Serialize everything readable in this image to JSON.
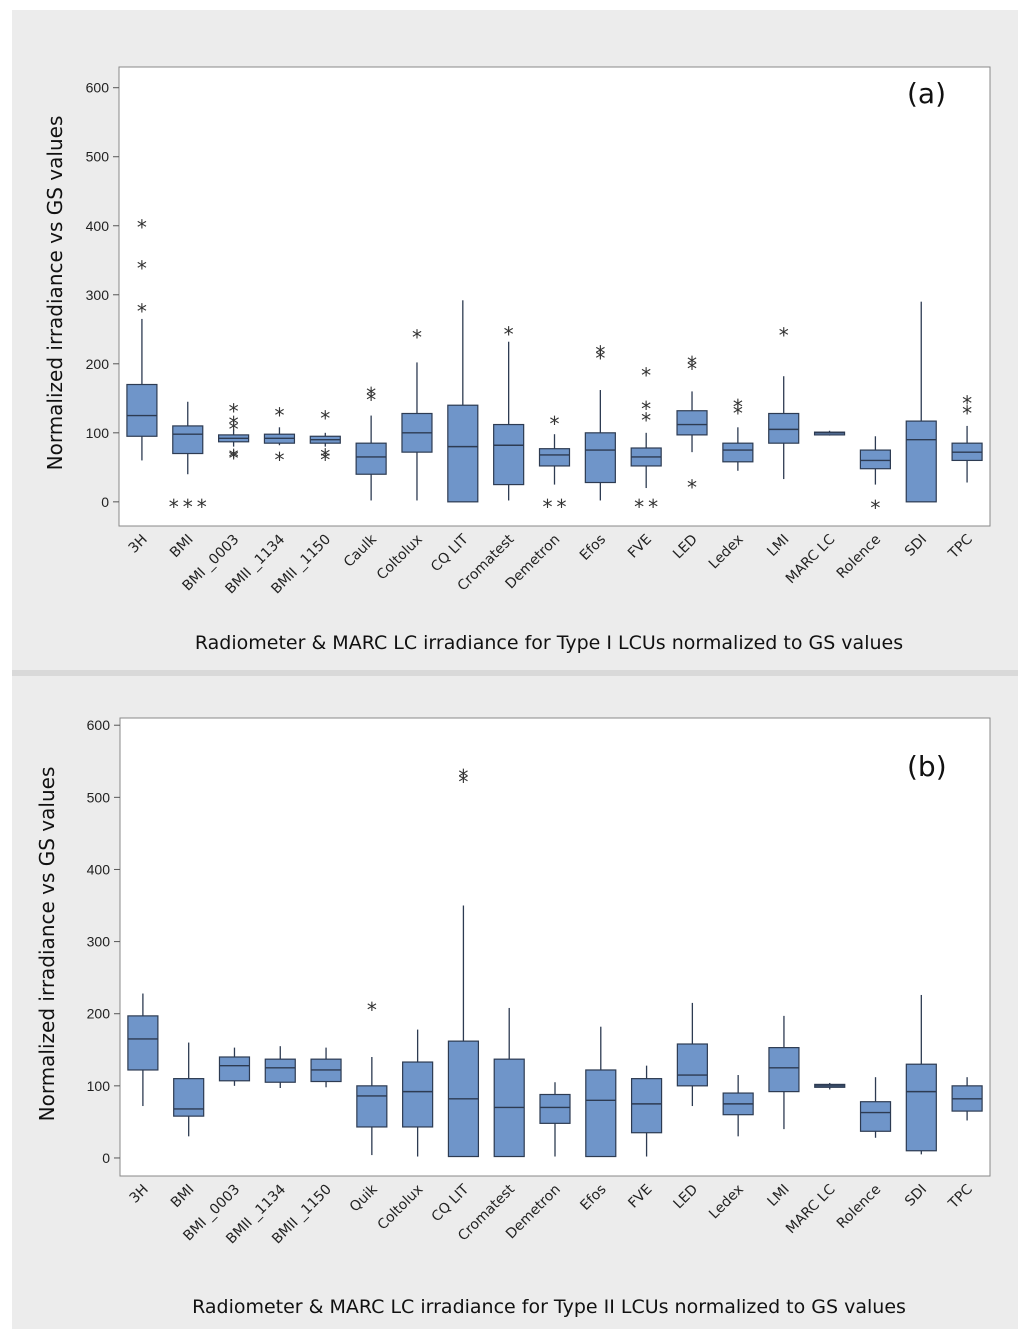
{
  "colors": {
    "box_fill": "#6f95c9",
    "box_stroke": "#2d3b52",
    "panel_bg": "#ececec",
    "plot_bg": "#ffffff"
  },
  "chart_data": [
    {
      "type": "boxplot",
      "panel_label": "(a)",
      "xlabel": "Radiometer & MARC LC irradiance for Type I LCUs normalized to GS values",
      "ylabel": "Normalized irradiance vs GS values",
      "ylim": [
        -35,
        630
      ],
      "yticks": [
        0,
        100,
        200,
        300,
        400,
        500,
        600
      ],
      "grid": false,
      "categories": [
        "3H",
        "BMI",
        "BMI_0003",
        "BMII_1134",
        "BMII_1150",
        "Caulk",
        "Coltolux",
        "CQ LIT",
        "Cromatest",
        "Demetron",
        "Efos",
        "FVE",
        "LED",
        "Ledex",
        "LMI",
        "MARC LC",
        "Rolence",
        "SDI",
        "TPC"
      ],
      "tick_labels": [
        "3H",
        "BMI",
        "BMI _0003",
        "BMII _1134",
        "BMII _1150",
        "Caulk",
        "Coltolux",
        "CQ LIT",
        "Cromatest",
        "Demetron",
        "Efos",
        "FVE",
        "LED",
        "Ledex",
        "LMI",
        "MARC LC",
        "Rolence",
        "SDI",
        "TPC"
      ],
      "boxes": [
        {
          "min": 60,
          "q1": 95,
          "median": 125,
          "q3": 170,
          "max": 265,
          "outliers": [
            283,
            345,
            405
          ]
        },
        {
          "min": 40,
          "q1": 70,
          "median": 98,
          "q3": 110,
          "max": 145,
          "outliers": [
            0,
            0,
            0
          ]
        },
        {
          "min": 80,
          "q1": 87,
          "median": 92,
          "q3": 97,
          "max": 105,
          "outliers": [
            70,
            72,
            112,
            120,
            138
          ]
        },
        {
          "min": 82,
          "q1": 85,
          "median": 92,
          "q3": 98,
          "max": 108,
          "outliers": [
            68,
            132
          ]
        },
        {
          "min": 80,
          "q1": 85,
          "median": 90,
          "q3": 95,
          "max": 100,
          "outliers": [
            68,
            73,
            128
          ]
        },
        {
          "min": 2,
          "q1": 40,
          "median": 65,
          "q3": 85,
          "max": 125,
          "outliers": [
            155,
            162
          ]
        },
        {
          "min": 2,
          "q1": 72,
          "median": 100,
          "q3": 128,
          "max": 202,
          "outliers": [
            245
          ]
        },
        {
          "min": 0,
          "q1": 0,
          "median": 80,
          "q3": 140,
          "max": 292,
          "outliers": []
        },
        {
          "min": 2,
          "q1": 25,
          "median": 82,
          "q3": 112,
          "max": 232,
          "outliers": [
            250
          ]
        },
        {
          "min": 25,
          "q1": 52,
          "median": 68,
          "q3": 77,
          "max": 98,
          "outliers": [
            0,
            0,
            120
          ]
        },
        {
          "min": 2,
          "q1": 28,
          "median": 75,
          "q3": 100,
          "max": 162,
          "outliers": [
            215,
            222
          ]
        },
        {
          "min": 20,
          "q1": 52,
          "median": 65,
          "q3": 78,
          "max": 100,
          "outliers": [
            0,
            0,
            125,
            142,
            190
          ]
        },
        {
          "min": 72,
          "q1": 97,
          "median": 112,
          "q3": 132,
          "max": 160,
          "outliers": [
            28,
            200,
            207
          ]
        },
        {
          "min": 45,
          "q1": 58,
          "median": 75,
          "q3": 85,
          "max": 108,
          "outliers": [
            135,
            145
          ]
        },
        {
          "min": 33,
          "q1": 85,
          "median": 105,
          "q3": 128,
          "max": 182,
          "outliers": [
            248
          ]
        },
        {
          "min": 96,
          "q1": 97,
          "median": 100,
          "q3": 101,
          "max": 103,
          "outliers": []
        },
        {
          "min": 25,
          "q1": 48,
          "median": 60,
          "q3": 75,
          "max": 95,
          "outliers": [
            -2
          ]
        },
        {
          "min": 0,
          "q1": 0,
          "median": 90,
          "q3": 117,
          "max": 290,
          "outliers": []
        },
        {
          "min": 28,
          "q1": 60,
          "median": 72,
          "q3": 85,
          "max": 110,
          "outliers": [
            135,
            150
          ]
        }
      ]
    },
    {
      "type": "boxplot",
      "panel_label": "(b)",
      "xlabel": "Radiometer & MARC LC irradiance for Type II LCUs normalized to GS values",
      "ylabel": "Normalized irradiance vs GS values",
      "ylim": [
        -25,
        610
      ],
      "yticks": [
        0,
        100,
        200,
        300,
        400,
        500,
        600
      ],
      "grid": false,
      "categories": [
        "3H",
        "BMI",
        "BMI_0003",
        "BMII_1134",
        "BMII_1150",
        "Quik",
        "Coltolux",
        "CQ LIT",
        "Cromatest",
        "Demetron",
        "Efos",
        "FVE",
        "LED",
        "Ledex",
        "LMI",
        "MARC LC",
        "Rolence",
        "SDI",
        "TPC"
      ],
      "tick_labels": [
        "3H",
        "BMI",
        "BMI _0003",
        "BMII _1134",
        "BMII _1150",
        "Quik",
        "Coltolux",
        "CQ LIT",
        "Cromatest",
        "Demetron",
        "Efos",
        "FVE",
        "LED",
        "Ledex",
        "LMI",
        "MARC LC",
        "Rolence",
        "SDI",
        "TPC"
      ],
      "boxes": [
        {
          "min": 72,
          "q1": 122,
          "median": 165,
          "q3": 197,
          "max": 228,
          "outliers": []
        },
        {
          "min": 30,
          "q1": 58,
          "median": 68,
          "q3": 110,
          "max": 160,
          "outliers": []
        },
        {
          "min": 100,
          "q1": 107,
          "median": 128,
          "q3": 140,
          "max": 153,
          "outliers": []
        },
        {
          "min": 97,
          "q1": 105,
          "median": 125,
          "q3": 137,
          "max": 155,
          "outliers": []
        },
        {
          "min": 98,
          "q1": 106,
          "median": 122,
          "q3": 137,
          "max": 153,
          "outliers": []
        },
        {
          "min": 4,
          "q1": 43,
          "median": 86,
          "q3": 100,
          "max": 140,
          "outliers": [
            212
          ]
        },
        {
          "min": 2,
          "q1": 43,
          "median": 92,
          "q3": 133,
          "max": 178,
          "outliers": []
        },
        {
          "min": 2,
          "q1": 2,
          "median": 82,
          "q3": 162,
          "max": 350,
          "outliers": [
            528,
            535
          ]
        },
        {
          "min": 2,
          "q1": 2,
          "median": 70,
          "q3": 137,
          "max": 208,
          "outliers": []
        },
        {
          "min": 2,
          "q1": 48,
          "median": 70,
          "q3": 88,
          "max": 105,
          "outliers": []
        },
        {
          "min": 2,
          "q1": 2,
          "median": 80,
          "q3": 122,
          "max": 182,
          "outliers": []
        },
        {
          "min": 2,
          "q1": 35,
          "median": 75,
          "q3": 110,
          "max": 128,
          "outliers": []
        },
        {
          "min": 72,
          "q1": 100,
          "median": 115,
          "q3": 158,
          "max": 215,
          "outliers": []
        },
        {
          "min": 30,
          "q1": 60,
          "median": 75,
          "q3": 90,
          "max": 115,
          "outliers": []
        },
        {
          "min": 40,
          "q1": 92,
          "median": 125,
          "q3": 153,
          "max": 197,
          "outliers": []
        },
        {
          "min": 95,
          "q1": 98,
          "median": 100,
          "q3": 102,
          "max": 104,
          "outliers": []
        },
        {
          "min": 28,
          "q1": 37,
          "median": 63,
          "q3": 78,
          "max": 112,
          "outliers": []
        },
        {
          "min": 5,
          "q1": 10,
          "median": 92,
          "q3": 130,
          "max": 226,
          "outliers": []
        },
        {
          "min": 52,
          "q1": 65,
          "median": 82,
          "q3": 100,
          "max": 112,
          "outliers": []
        }
      ]
    }
  ]
}
